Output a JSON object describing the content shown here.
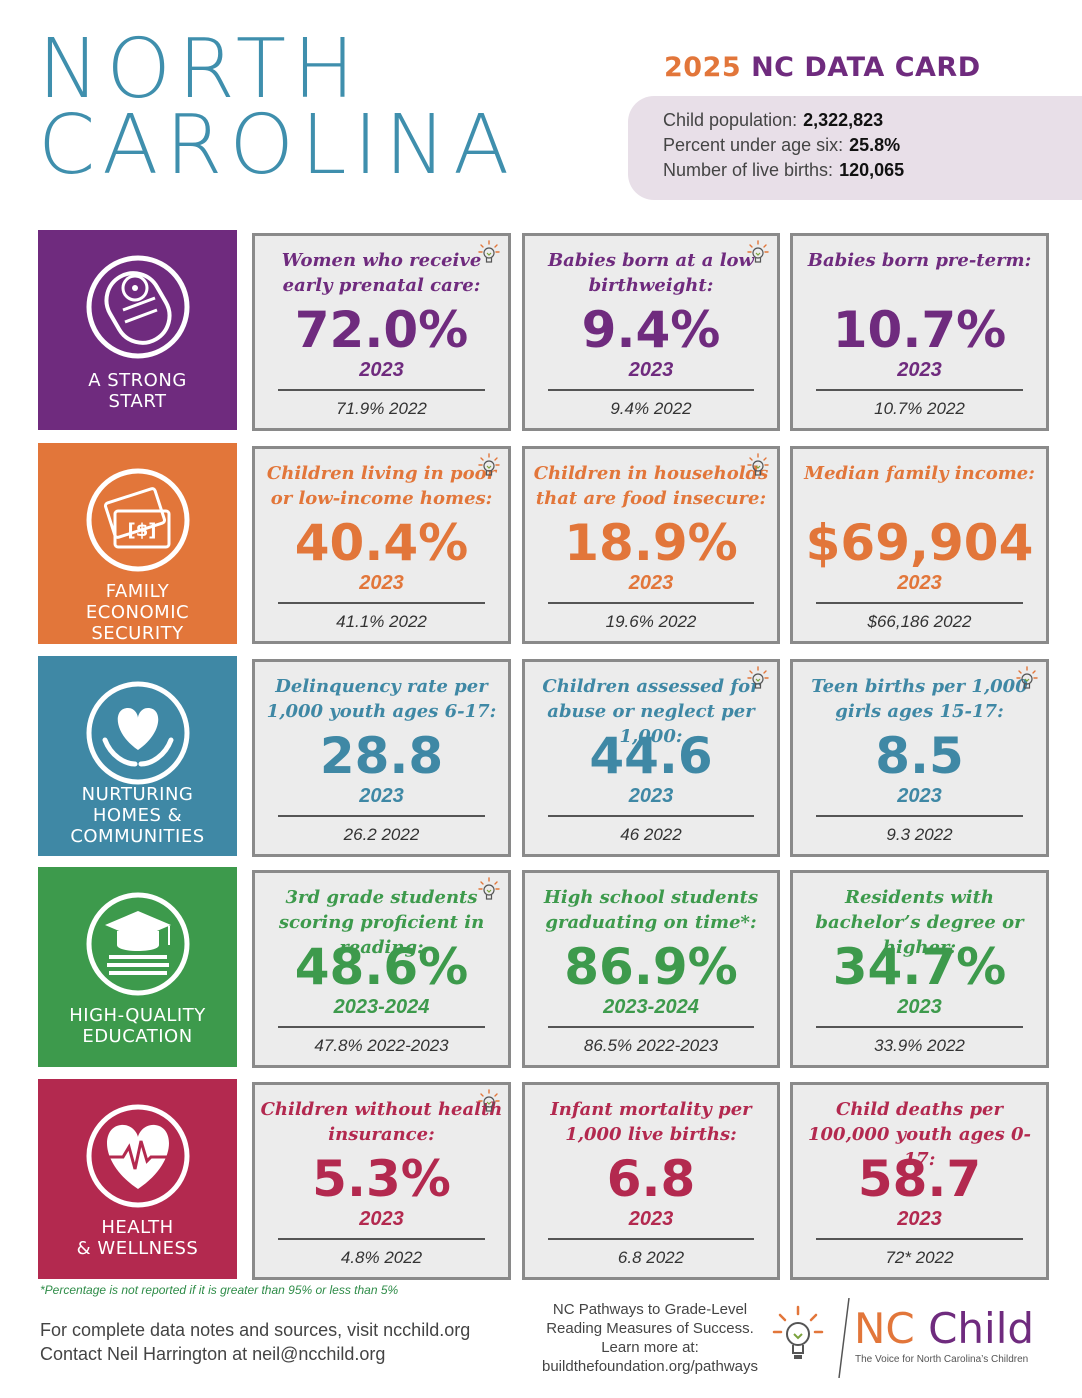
{
  "header": {
    "title_line1": "NORTH",
    "title_line2": "CAROLINA",
    "card_year": "2025",
    "card_title": "NC DATA CARD",
    "stats": [
      {
        "label": "Child population:",
        "value": "2,322,823"
      },
      {
        "label": "Percent under age six:",
        "value": "25.8%"
      },
      {
        "label": "Number of live births:",
        "value": "120,065"
      }
    ]
  },
  "colors": {
    "teal": "#3f8fad",
    "purple": "#6f2b7e",
    "orange": "#e2763a",
    "blue": "#3f88a5",
    "green": "#3d9a4c",
    "red": "#b3294f"
  },
  "categories": [
    {
      "label_lines": [
        "A STRONG",
        "START"
      ],
      "icon": "baby-icon",
      "indicators": [
        {
          "question": "Women who receive early prenatal care:",
          "value": "72.0%",
          "year": "2023",
          "prev": "71.9%   2022",
          "bulb": true
        },
        {
          "question": "Babies born at a low birthweight:",
          "value": "9.4%",
          "year": "2023",
          "prev": "9.4%  2022",
          "bulb": true
        },
        {
          "question": "Babies born pre-term:",
          "value": "10.7%",
          "year": "2023",
          "prev": "10.7%  2022",
          "bulb": false
        }
      ]
    },
    {
      "label_lines": [
        "FAMILY",
        "ECONOMIC",
        "SECURITY"
      ],
      "icon": "money-icon",
      "indicators": [
        {
          "question": "Children living in poor or low-income homes:",
          "value": "40.4%",
          "year": "2023",
          "prev": "41.1%   2022",
          "bulb": true
        },
        {
          "question": "Children in households that are food insecure:",
          "value": "18.9%",
          "year": "2023",
          "prev": "19.6%  2022",
          "bulb": true
        },
        {
          "question": "Median family income:",
          "value": "$69,904",
          "year": "2023",
          "prev": "$66,186  2022",
          "bulb": false
        }
      ]
    },
    {
      "label_lines": [
        "NURTURING",
        "HOMES &",
        "COMMUNITIES"
      ],
      "icon": "heart-hands-icon",
      "indicators": [
        {
          "question": "Delinquency rate per 1,000 youth ages 6-17:",
          "value": "28.8",
          "year": "2023",
          "prev": "26.2  2022",
          "bulb": false
        },
        {
          "question": "Children assessed for abuse or neglect per 1,000:",
          "value": "44.6",
          "year": "2023",
          "prev": "46  2022",
          "bulb": true
        },
        {
          "question": "Teen births per 1,000 girls ages 15-17:",
          "value": "8.5",
          "year": "2023",
          "prev": "9.3  2022",
          "bulb": true
        }
      ]
    },
    {
      "label_lines": [
        "HIGH-QUALITY",
        "EDUCATION"
      ],
      "icon": "graduation-cap-icon",
      "indicators": [
        {
          "question": "3rd grade students scoring proficient in reading:",
          "value": "48.6%",
          "year": "2023-2024",
          "prev": "47.8%  2022-2023",
          "bulb": true
        },
        {
          "question": "High school students graduating on time*:",
          "value": "86.9%",
          "year": "2023-2024",
          "prev": "86.5%  2022-2023",
          "bulb": false
        },
        {
          "question": "Residents with bachelor’s degree or higher:",
          "value": "34.7%",
          "year": "2023",
          "prev": "33.9%  2022",
          "bulb": false
        }
      ]
    },
    {
      "label_lines": [
        "HEALTH",
        "& WELLNESS"
      ],
      "icon": "heartbeat-icon",
      "indicators": [
        {
          "question": "Children without health insurance:",
          "value": "5.3%",
          "year": "2023",
          "prev": "4.8%  2022",
          "bulb": true
        },
        {
          "question": "Infant mortality per 1,000 live births:",
          "value": "6.8",
          "year": "2023",
          "prev": "6.8  2022",
          "bulb": false
        },
        {
          "question": "Child deaths per 100,000 youth ages 0-17:",
          "value": "58.7",
          "year": "2023",
          "prev": "72*  2022",
          "bulb": false
        }
      ]
    }
  ],
  "footer": {
    "footnote": "*Percentage is not reported if it is greater than 95% or less than 5%",
    "line1": "For complete data notes and sources, visit ncchild.org",
    "line2": "Contact Neil Harrington at neil@ncchild.org",
    "pathways_lines": [
      "NC Pathways to Grade-Level",
      "Reading Measures of Success.",
      "Learn more at:",
      "buildthefoundation.org/pathways"
    ],
    "logo_nc": "NC",
    "logo_child": "Child",
    "logo_tagline": "The Voice for North Carolina’s Children"
  }
}
